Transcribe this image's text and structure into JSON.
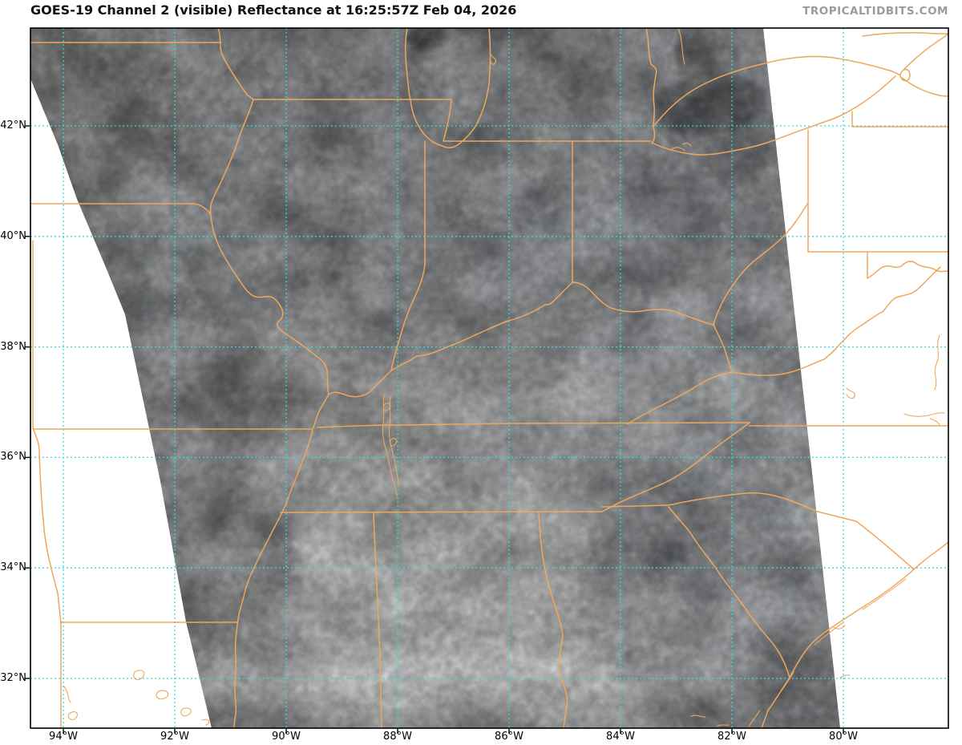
{
  "header": {
    "title": "GOES-19 Channel 2 (visible) Reflectance at 16:25:57Z Feb 04, 2026",
    "watermark": "TROPICALTIDBITS.COM"
  },
  "satellite": {
    "name": "GOES-19",
    "channel": "Channel 2 (visible)",
    "product": "Reflectance",
    "time": "16:25:57Z",
    "date": "Feb 04, 2026"
  },
  "colors": {
    "grid": "#2ddcdc",
    "boundary": "#eda75e",
    "axis": "#000000",
    "title": "#111111",
    "watermark": "#9b9b9b",
    "background": "#ffffff",
    "swath_dark": "#84878b",
    "swath_light": "#97999c"
  },
  "axes": {
    "lon_ticks": [
      {
        "deg": 94,
        "label": "94°W"
      },
      {
        "deg": 92,
        "label": "92°W"
      },
      {
        "deg": 90,
        "label": "90°W"
      },
      {
        "deg": 88,
        "label": "88°W"
      },
      {
        "deg": 86,
        "label": "86°W"
      },
      {
        "deg": 84,
        "label": "84°W"
      },
      {
        "deg": 82,
        "label": "82°W"
      },
      {
        "deg": 80,
        "label": "80°W"
      }
    ],
    "lat_ticks": [
      {
        "deg": 42,
        "label": "42°N"
      },
      {
        "deg": 40,
        "label": "40°N"
      },
      {
        "deg": 38,
        "label": "38°N"
      },
      {
        "deg": 36,
        "label": "36°N"
      },
      {
        "deg": 34,
        "label": "34°N"
      },
      {
        "deg": 32,
        "label": "32°N"
      }
    ]
  },
  "chart_data": {
    "type": "map",
    "title": "GOES-19 Channel 2 (visible) Reflectance at 16:25:57Z Feb 04, 2026",
    "projection_grid": {
      "lon_ticks_degW": [
        94,
        92,
        90,
        88,
        86,
        84,
        82,
        80
      ],
      "lat_ticks_degN": [
        42,
        40,
        38,
        36,
        34,
        32
      ],
      "grid_style": "cyan dotted"
    },
    "layers": [
      "grayscale-visible-satellite-swath",
      "latlon-gridlines",
      "state-and-river-boundaries"
    ],
    "region": "Central / Eastern United States (Midwest to Atlantic coast)",
    "source_watermark": "TROPICALTIDBITS.COM"
  }
}
